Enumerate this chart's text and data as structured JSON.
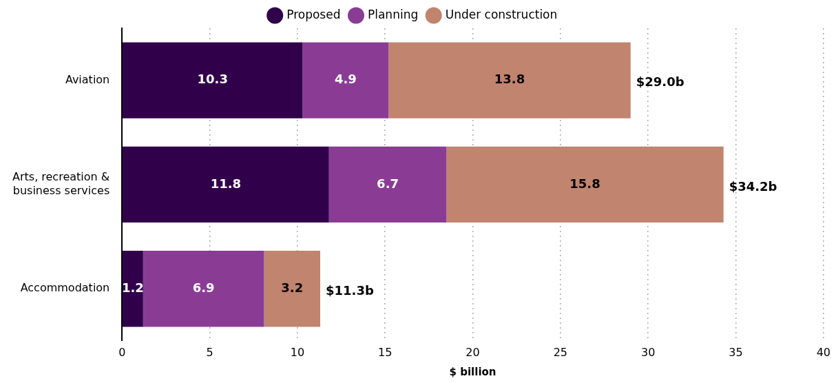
{
  "chart_data": {
    "type": "bar",
    "orientation": "horizontal",
    "stacked": true,
    "xlabel": "$ billion",
    "categories": [
      "Aviation",
      "Arts, recreation & business services",
      "Accommodation"
    ],
    "series": [
      {
        "name": "Proposed",
        "color": "#30004b",
        "values": [
          10.3,
          11.8,
          1.2
        ]
      },
      {
        "name": "Planning",
        "color": "#8a3c95",
        "values": [
          4.9,
          6.7,
          6.9
        ]
      },
      {
        "name": "Under construction",
        "color": "#c0846f",
        "values": [
          13.8,
          15.8,
          3.2
        ]
      }
    ],
    "xlim": [
      0,
      40
    ],
    "xticks": [
      0,
      5,
      10,
      15,
      20,
      25,
      30,
      35,
      40
    ],
    "grid": "x",
    "legend": "top",
    "data_labels": true,
    "totals": [
      "$29.0b",
      "$34.2b",
      "$11.3b"
    ]
  }
}
